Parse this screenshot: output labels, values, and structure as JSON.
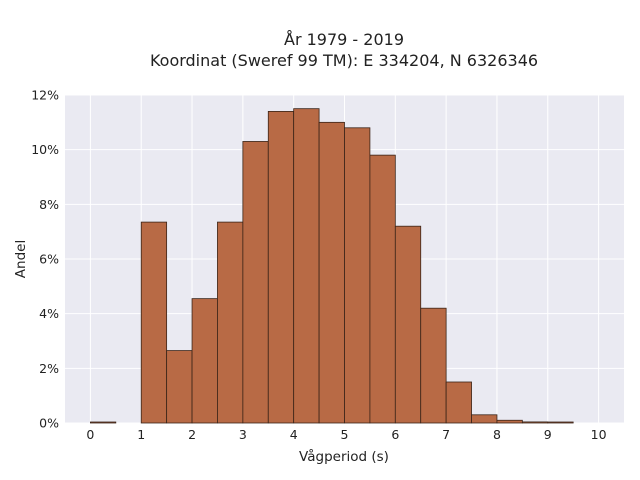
{
  "chart_data": {
    "type": "bar",
    "title": "År 1979 - 2019",
    "subtitle": "Koordinat (Sweref 99 TM): E 334204, N 6326346",
    "xlabel": "Vågperiod (s)",
    "ylabel": "Andel",
    "bin_width": 0.5,
    "bin_starts": [
      0,
      0.5,
      1,
      1.5,
      2,
      2.5,
      3,
      3.5,
      4,
      4.5,
      5,
      5.5,
      6,
      6.5,
      7,
      7.5,
      8,
      8.5,
      9,
      9.5
    ],
    "values": [
      0.0003,
      0,
      0.0735,
      0.0265,
      0.0455,
      0.0735,
      0.103,
      0.114,
      0.115,
      0.11,
      0.108,
      0.098,
      0.072,
      0.042,
      0.015,
      0.003,
      0.001,
      0.0004,
      0.0002,
      0
    ],
    "xlim": [
      -0.5,
      10.5
    ],
    "ylim": [
      0,
      0.12
    ],
    "xticks": [
      0,
      1,
      2,
      3,
      4,
      5,
      6,
      7,
      8,
      9,
      10
    ],
    "yticks": [
      0,
      0.02,
      0.04,
      0.06,
      0.08,
      0.1,
      0.12
    ],
    "ytick_labels": [
      "0%",
      "2%",
      "4%",
      "6%",
      "8%",
      "10%",
      "12%"
    ],
    "grid": true,
    "bar_color": "#b86a45",
    "bar_edge_color": "#3a2418",
    "plot_background": "#eaeaf2"
  }
}
